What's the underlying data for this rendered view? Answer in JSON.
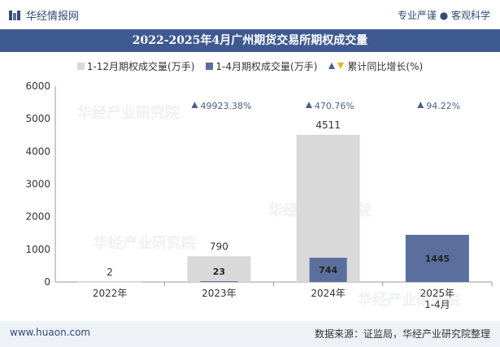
{
  "header": {
    "logo_text": "华经情报网",
    "tagline": "专业严谨 ● 客观科学"
  },
  "footer": {
    "url": "www.huaon.com",
    "source": "数据来源：证监局，华经产业研究院整理"
  },
  "watermark": "华经产业研究院",
  "colors": {
    "bar1": "#d9d9d9",
    "bar2": "#5b6f9e",
    "header_bg": "#3f5a91",
    "triangle_up": "#4a5f8f",
    "triangle_down": "#e6b800",
    "pct_text": "#4a5f8f"
  },
  "chart_data": {
    "type": "bar",
    "title": "2022-2025年4月广州期货交易所期权成交量",
    "categories": [
      "2022年",
      "2023年",
      "2024年",
      "2025年\n1-4月"
    ],
    "series": [
      {
        "name": "1-12月期权成交量(万手)",
        "values": [
          2,
          790,
          4511,
          null
        ]
      },
      {
        "name": "1-4月期权成交量(万手)",
        "values": [
          null,
          23,
          744,
          1445
        ]
      }
    ],
    "growth_legend": "累计同比增长(%)",
    "growth_labels": [
      null,
      "49923.38%",
      "470.76%",
      "94.22%"
    ],
    "ylim": [
      0,
      6000
    ],
    "yticks": [
      0,
      1000,
      2000,
      3000,
      4000,
      5000,
      6000
    ],
    "grid": false
  }
}
